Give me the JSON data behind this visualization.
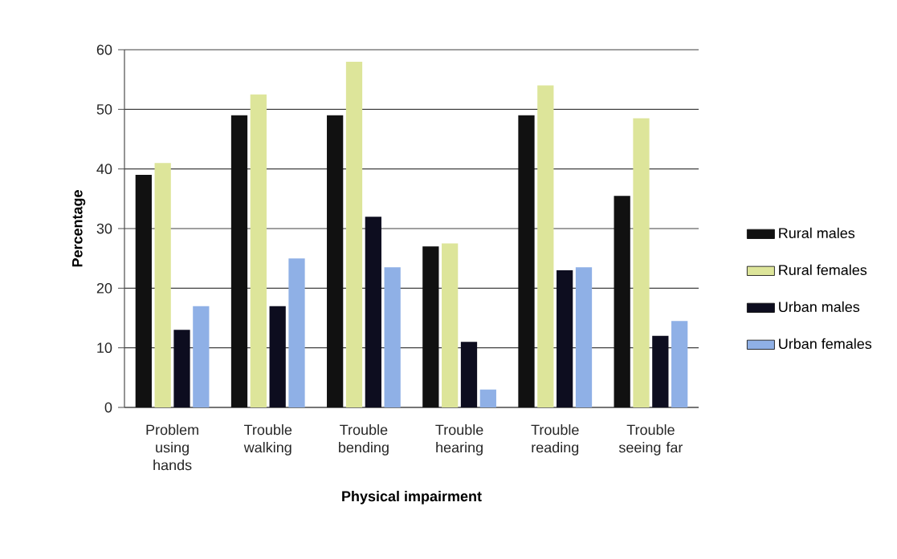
{
  "chart_data": {
    "type": "bar",
    "xlabel": "Physical impairment",
    "ylabel": "Percentage",
    "categories": [
      "Problem using hands",
      "Trouble walking",
      "Trouble bending",
      "Trouble hearing",
      "Trouble reading",
      "Trouble seeing far"
    ],
    "series": [
      {
        "name": "Rural males",
        "color": "#111111",
        "values": [
          39,
          49,
          49,
          27,
          49,
          35.5
        ]
      },
      {
        "name": "Rural females",
        "color": "#dde59a",
        "values": [
          41,
          52.5,
          58,
          27.5,
          54,
          48.5
        ]
      },
      {
        "name": "Urban males",
        "color": "#0d0d1f",
        "values": [
          13,
          17,
          32,
          11,
          23,
          12
        ]
      },
      {
        "name": "Urban females",
        "color": "#8fb0e6",
        "values": [
          17,
          25,
          23.5,
          3,
          23.5,
          14.5
        ]
      }
    ],
    "ylim": [
      0,
      60
    ],
    "yticks": [
      0,
      10,
      20,
      30,
      40,
      50,
      60
    ],
    "grid": "y",
    "legend": "right"
  }
}
